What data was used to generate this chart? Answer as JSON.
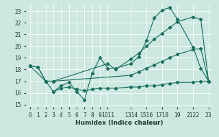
{
  "background_color": "#cce8e0",
  "grid_color": "#ffffff",
  "line_color": "#1a7060",
  "xlabel": "Humidex (Indice chaleur)",
  "xlim": [
    -0.5,
    23.5
  ],
  "ylim": [
    14.8,
    23.6
  ],
  "yticks": [
    15,
    16,
    17,
    18,
    19,
    20,
    21,
    22,
    23
  ],
  "line_jagged_x": [
    3,
    4,
    5,
    6,
    7,
    8,
    9,
    10,
    11,
    13,
    14,
    15,
    16,
    17,
    18,
    19,
    21,
    22,
    23
  ],
  "line_jagged_y": [
    16.1,
    16.6,
    16.9,
    16.1,
    15.4,
    17.7,
    19.0,
    18.1,
    18.1,
    18.5,
    19.1,
    20.5,
    22.4,
    23.1,
    23.3,
    22.3,
    19.9,
    18.1,
    17.0
  ],
  "line_diag1_x": [
    0,
    1,
    2,
    3,
    10,
    11,
    13,
    14,
    15,
    16,
    17,
    18,
    19,
    21,
    22,
    23
  ],
  "line_diag1_y": [
    18.3,
    18.2,
    17.0,
    17.0,
    18.5,
    18.0,
    18.9,
    19.4,
    20.0,
    20.6,
    21.1,
    21.6,
    22.1,
    22.5,
    22.3,
    17.0
  ],
  "line_diag2_x": [
    0,
    1,
    2,
    3,
    13,
    14,
    15,
    16,
    17,
    18,
    19,
    21,
    22,
    23
  ],
  "line_diag2_y": [
    18.3,
    18.2,
    17.0,
    17.0,
    17.5,
    17.8,
    18.1,
    18.4,
    18.7,
    19.0,
    19.3,
    19.7,
    19.8,
    17.0
  ],
  "line_flat_x": [
    0,
    2,
    3,
    4,
    5,
    6,
    7,
    8,
    9,
    10,
    11,
    13,
    14,
    15,
    16,
    17,
    18,
    19,
    21,
    22,
    23
  ],
  "line_flat_y": [
    18.3,
    17.0,
    16.1,
    16.4,
    16.5,
    16.3,
    16.2,
    16.3,
    16.4,
    16.4,
    16.4,
    16.5,
    16.5,
    16.6,
    16.6,
    16.7,
    16.8,
    16.9,
    16.9,
    17.0,
    17.0
  ]
}
